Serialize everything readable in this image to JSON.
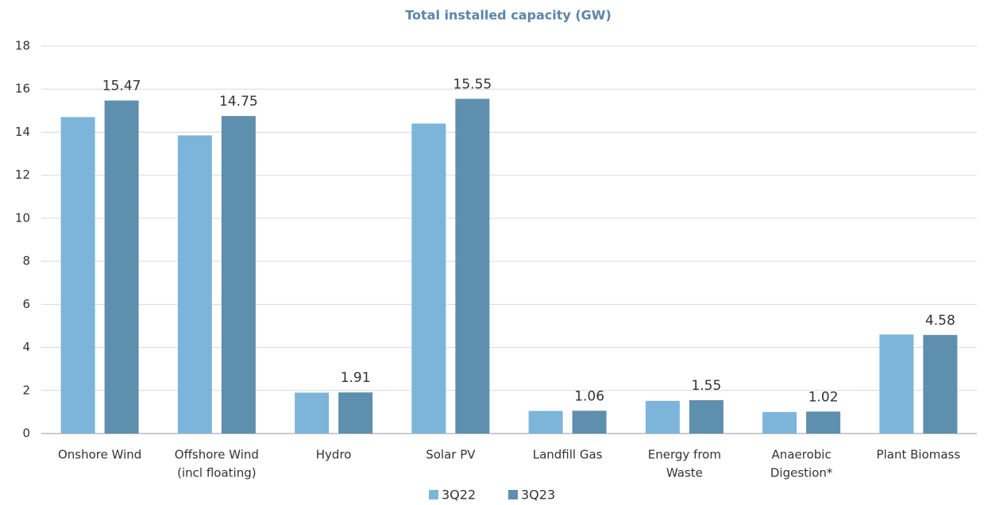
{
  "chart_data": {
    "type": "bar",
    "title": "Total installed capacity (GW)",
    "categories": [
      [
        "Onshore Wind"
      ],
      [
        "Offshore Wind",
        "(incl floating)"
      ],
      [
        "Hydro"
      ],
      [
        "Solar PV"
      ],
      [
        "Landfill Gas"
      ],
      [
        "Energy from",
        "Waste"
      ],
      [
        "Anaerobic",
        "Digestion*"
      ],
      [
        "Plant Biomass"
      ]
    ],
    "series": [
      {
        "name": "3Q22",
        "color": "#7db5da",
        "values": [
          14.7,
          13.85,
          1.9,
          14.4,
          1.05,
          1.52,
          1.0,
          4.6
        ],
        "labels": false
      },
      {
        "name": "3Q23",
        "color": "#5f8faf",
        "values": [
          15.47,
          14.75,
          1.91,
          15.55,
          1.06,
          1.55,
          1.02,
          4.58
        ],
        "labels": true
      }
    ],
    "ylim": [
      0,
      18
    ],
    "yticks": [
      0,
      2,
      4,
      6,
      8,
      10,
      12,
      14,
      16,
      18
    ],
    "grid": true,
    "legend": "bottom"
  }
}
